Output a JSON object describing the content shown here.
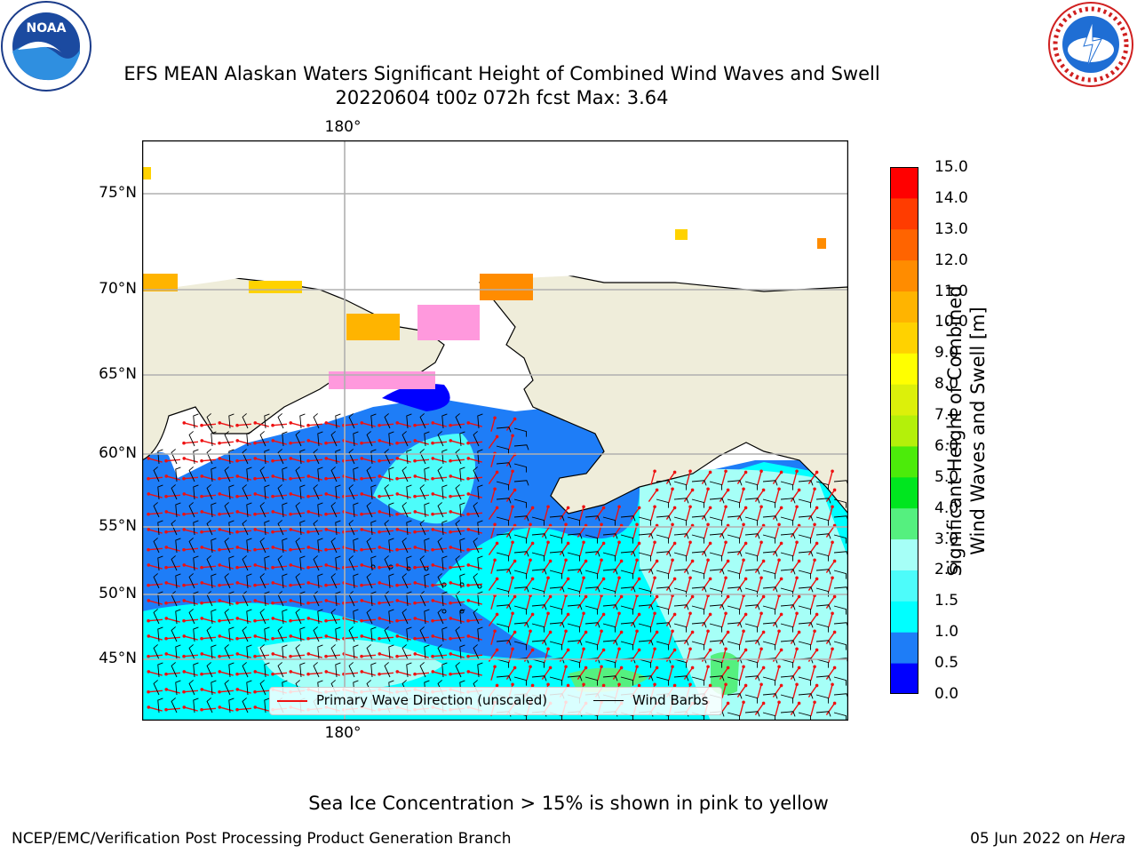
{
  "title": {
    "line1": "EFS MEAN Alaskan Waters Significant Height of Combined Wind Waves and Swell",
    "line2": "20220604 t00z 072h fcst   Max: 3.64"
  },
  "logos": {
    "left_name": "NOAA",
    "right_name": "NATIONAL WEATHER SERVICE"
  },
  "map": {
    "lon_label_top": "180°",
    "lon_label_bottom": "180°",
    "lat_labels": [
      "75°N",
      "70°N",
      "65°N",
      "60°N",
      "55°N",
      "50°N",
      "45°N"
    ],
    "colors": {
      "land": "#efedda",
      "ice": "#ff99dd",
      "grid": "#b0b0b0"
    }
  },
  "legend": {
    "wave_label": "Primary Wave Direction (unscaled)",
    "wind_label": "Wind Barbs",
    "wave_color": "#ee1111",
    "wind_color": "#000000"
  },
  "colorbar": {
    "title_line1": "Significant Height of Combined",
    "title_line2": "Wind Waves and Swell [m]",
    "ticks": [
      "15.0",
      "14.0",
      "13.0",
      "12.0",
      "11.0",
      "10.0",
      "9.0",
      "8.0",
      "7.0",
      "6.0",
      "5.0",
      "4.0",
      "3.0",
      "2.0",
      "1.5",
      "1.0",
      "0.5",
      "0.0"
    ],
    "colors": [
      "#0000ff",
      "#1e7df7",
      "#00ffff",
      "#4dfcfa",
      "#a6fff7",
      "#55f07f",
      "#00e61f",
      "#4ceb0a",
      "#b4f00a",
      "#dcf00a",
      "#ffff00",
      "#ffd200",
      "#ffb400",
      "#ff8c00",
      "#ff6400",
      "#ff3c00",
      "#ff0000"
    ]
  },
  "footer": {
    "note": "Sea Ice Concentration > 15% is shown in pink to yellow",
    "left": "NCEP/EMC/Verification Post Processing Product Generation Branch",
    "right_date": "05 Jun 2022 on ",
    "right_host": "Hera"
  }
}
